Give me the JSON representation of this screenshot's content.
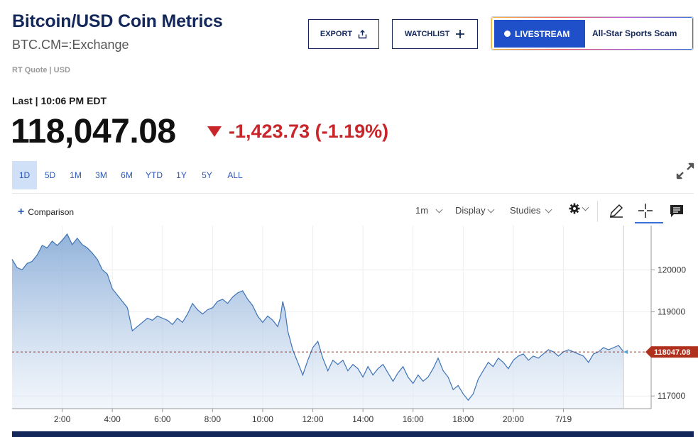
{
  "header": {
    "title": "Bitcoin/USD Coin Metrics",
    "symbol": "BTC.CM=:Exchange",
    "rt_quote": "RT Quote | USD"
  },
  "actions": {
    "export_label": "EXPORT",
    "export_icon": "share-icon",
    "watchlist_label": "WATCHLIST",
    "watchlist_icon": "plus-icon",
    "livestream_label": "LIVESTREAM",
    "livestream_text": "All-Star Sports Scam",
    "livestream_color": "#1f4fc9"
  },
  "quote": {
    "last_label": "Last | 10:06 PM EDT",
    "price": "118,047.08",
    "change": "-1,423.73 (-1.19%)",
    "change_color": "#c9262c",
    "direction": "down"
  },
  "ranges": [
    "1D",
    "5D",
    "1M",
    "3M",
    "6M",
    "YTD",
    "1Y",
    "5Y",
    "ALL"
  ],
  "active_range": "1D",
  "toolbar": {
    "comparison_label": "Comparison",
    "interval_label": "1m",
    "display_label": "Display",
    "studies_label": "Studies",
    "icons": [
      "gear-icon",
      "pencil-icon",
      "crosshair-icon",
      "comment-icon",
      "expand-icon"
    ]
  },
  "chart_data": {
    "type": "area",
    "x_tick_labels": [
      "2:00",
      "4:00",
      "6:00",
      "8:00",
      "10:00",
      "12:00",
      "14:00",
      "16:00",
      "18:00",
      "20:00",
      "7/19"
    ],
    "x_ticks_hours": [
      2,
      4,
      6,
      8,
      10,
      12,
      14,
      16,
      18,
      20,
      22
    ],
    "y_tick_labels": [
      "120000",
      "119000",
      "117000"
    ],
    "y_ticks": [
      120000,
      119000,
      117000
    ],
    "ylim": [
      116700,
      121050
    ],
    "xlim": [
      0,
      25.5
    ],
    "last_value_label": "118047.08",
    "last_value": 118047.08,
    "line_color": "#3d73b4",
    "last_value_color": "#b0301e",
    "series": [
      {
        "values": [
          [
            0.0,
            120250
          ],
          [
            0.2,
            120050
          ],
          [
            0.4,
            120000
          ],
          [
            0.6,
            120150
          ],
          [
            0.8,
            120200
          ],
          [
            1.0,
            120350
          ],
          [
            1.2,
            120580
          ],
          [
            1.4,
            120520
          ],
          [
            1.6,
            120680
          ],
          [
            1.8,
            120580
          ],
          [
            2.0,
            120700
          ],
          [
            2.2,
            120850
          ],
          [
            2.4,
            120600
          ],
          [
            2.6,
            120750
          ],
          [
            2.8,
            120600
          ],
          [
            3.0,
            120520
          ],
          [
            3.2,
            120400
          ],
          [
            3.4,
            120250
          ],
          [
            3.6,
            120000
          ],
          [
            3.8,
            119900
          ],
          [
            4.0,
            119550
          ],
          [
            4.2,
            119400
          ],
          [
            4.4,
            119250
          ],
          [
            4.6,
            119100
          ],
          [
            4.8,
            118550
          ],
          [
            5.0,
            118650
          ],
          [
            5.2,
            118750
          ],
          [
            5.4,
            118850
          ],
          [
            5.6,
            118800
          ],
          [
            5.8,
            118900
          ],
          [
            6.0,
            118850
          ],
          [
            6.2,
            118800
          ],
          [
            6.4,
            118700
          ],
          [
            6.6,
            118850
          ],
          [
            6.8,
            118750
          ],
          [
            7.0,
            118950
          ],
          [
            7.2,
            119200
          ],
          [
            7.4,
            119050
          ],
          [
            7.6,
            118950
          ],
          [
            7.8,
            119050
          ],
          [
            8.0,
            119100
          ],
          [
            8.2,
            119250
          ],
          [
            8.4,
            119300
          ],
          [
            8.6,
            119200
          ],
          [
            8.8,
            119350
          ],
          [
            9.0,
            119450
          ],
          [
            9.2,
            119500
          ],
          [
            9.4,
            119300
          ],
          [
            9.6,
            119150
          ],
          [
            9.8,
            118900
          ],
          [
            10.0,
            118750
          ],
          [
            10.2,
            118900
          ],
          [
            10.4,
            118800
          ],
          [
            10.6,
            118650
          ],
          [
            10.7,
            118850
          ],
          [
            10.8,
            119250
          ],
          [
            10.9,
            119000
          ],
          [
            11.0,
            118550
          ],
          [
            11.2,
            118100
          ],
          [
            11.4,
            117800
          ],
          [
            11.6,
            117500
          ],
          [
            11.8,
            117850
          ],
          [
            12.0,
            118150
          ],
          [
            12.2,
            118300
          ],
          [
            12.4,
            117900
          ],
          [
            12.6,
            117600
          ],
          [
            12.8,
            117850
          ],
          [
            13.0,
            117750
          ],
          [
            13.2,
            117850
          ],
          [
            13.4,
            117600
          ],
          [
            13.6,
            117750
          ],
          [
            13.8,
            117650
          ],
          [
            14.0,
            117450
          ],
          [
            14.2,
            117700
          ],
          [
            14.4,
            117500
          ],
          [
            14.6,
            117650
          ],
          [
            14.8,
            117750
          ],
          [
            15.0,
            117550
          ],
          [
            15.2,
            117350
          ],
          [
            15.4,
            117550
          ],
          [
            15.6,
            117700
          ],
          [
            15.8,
            117450
          ],
          [
            16.0,
            117300
          ],
          [
            16.2,
            117500
          ],
          [
            16.4,
            117350
          ],
          [
            16.6,
            117450
          ],
          [
            16.8,
            117650
          ],
          [
            17.0,
            117900
          ],
          [
            17.2,
            117600
          ],
          [
            17.4,
            117450
          ],
          [
            17.6,
            117150
          ],
          [
            17.8,
            117250
          ],
          [
            18.0,
            117050
          ],
          [
            18.2,
            116900
          ],
          [
            18.4,
            117050
          ],
          [
            18.6,
            117400
          ],
          [
            18.8,
            117600
          ],
          [
            19.0,
            117800
          ],
          [
            19.2,
            117700
          ],
          [
            19.4,
            117900
          ],
          [
            19.6,
            117800
          ],
          [
            19.8,
            117650
          ],
          [
            20.0,
            117850
          ],
          [
            20.2,
            117950
          ],
          [
            20.4,
            118000
          ],
          [
            20.6,
            117850
          ],
          [
            20.8,
            117950
          ],
          [
            21.0,
            117900
          ],
          [
            21.2,
            118000
          ],
          [
            21.4,
            118100
          ],
          [
            21.6,
            118050
          ],
          [
            21.8,
            117950
          ],
          [
            22.0,
            118050
          ],
          [
            22.2,
            118100
          ],
          [
            22.4,
            118050
          ],
          [
            22.6,
            118000
          ],
          [
            22.8,
            117950
          ],
          [
            23.0,
            117800
          ],
          [
            23.2,
            118000
          ],
          [
            23.4,
            118050
          ],
          [
            23.6,
            118150
          ],
          [
            23.8,
            118100
          ],
          [
            24.0,
            118150
          ],
          [
            24.2,
            118200
          ],
          [
            24.4,
            118050
          ]
        ]
      }
    ]
  }
}
